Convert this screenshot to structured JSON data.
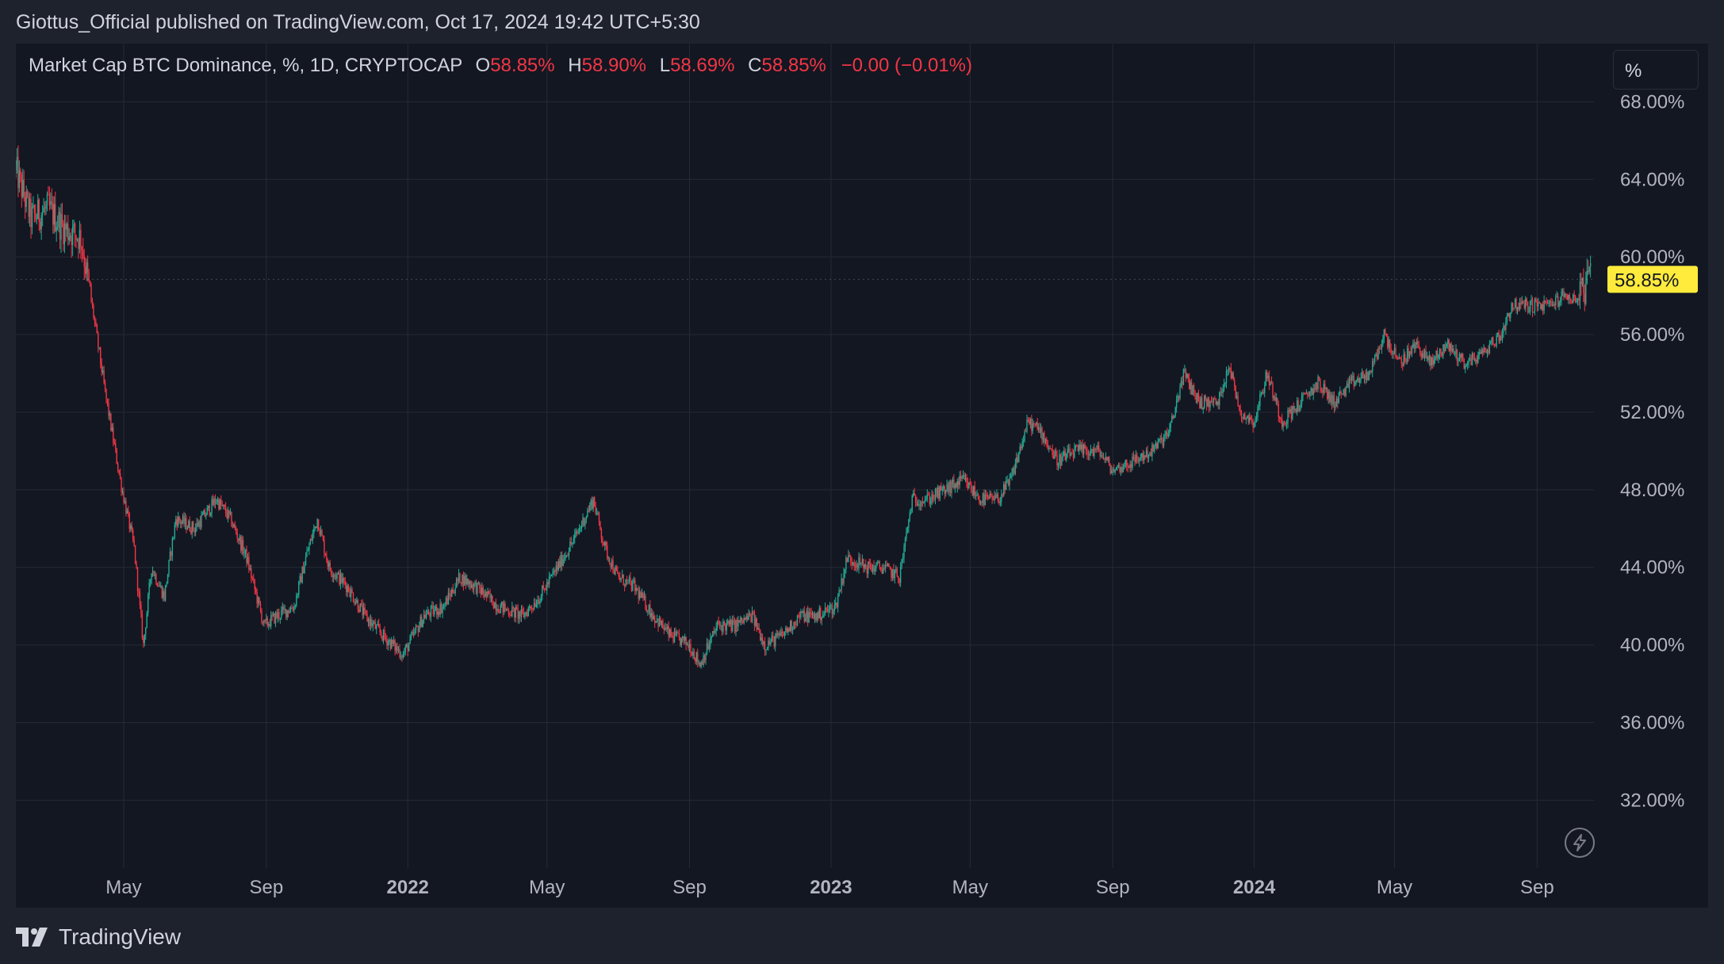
{
  "header": {
    "published_line": "Giottus_Official published on TradingView.com, Oct 17, 2024 19:42 UTC+5:30"
  },
  "legend": {
    "symbol": "Market Cap BTC Dominance, %, 1D, CRYPTOCAP",
    "o_label": "O",
    "o_value": "58.85%",
    "h_label": "H",
    "h_value": "58.90%",
    "l_label": "L",
    "l_value": "58.69%",
    "c_label": "C",
    "c_value": "58.85%",
    "change": "−0.00 (−0.01%)"
  },
  "scale_button": {
    "label": "%"
  },
  "footer": {
    "brand": "TradingView"
  },
  "colors": {
    "up": "#22ab94",
    "down": "#f23645",
    "background": "#131722",
    "frame": "#1e222d",
    "grid": "#262a35",
    "axis_text": "#b2b5be",
    "price_label_bg": "#ffeb3b"
  },
  "icons": {
    "scale_icon": "lightning-bolt-icon",
    "brand_icon": "tradingview-logo-icon"
  },
  "chart_data": {
    "type": "candlestick",
    "title": "Market Cap BTC Dominance, %, 1D, CRYPTOCAP",
    "ylim": [
      28.5,
      71
    ],
    "y_ticks": [
      "68.00%",
      "64.00%",
      "60.00%",
      "56.00%",
      "52.00%",
      "48.00%",
      "44.00%",
      "40.00%",
      "36.00%",
      "32.00%"
    ],
    "y_tick_values": [
      68,
      64,
      60,
      56,
      52,
      48,
      44,
      40,
      36,
      32
    ],
    "x_ticks": [
      "May",
      "Sep",
      "2022",
      "May",
      "Sep",
      "2023",
      "May",
      "Sep",
      "2024",
      "May",
      "Sep"
    ],
    "x_tick_dates": [
      "2021-05-01",
      "2021-09-01",
      "2022-01-01",
      "2022-05-01",
      "2022-09-01",
      "2023-01-01",
      "2023-05-01",
      "2023-09-01",
      "2024-01-01",
      "2024-05-01",
      "2024-09-01"
    ],
    "x_tick_bold": [
      false,
      false,
      true,
      false,
      false,
      true,
      false,
      false,
      true,
      false,
      false
    ],
    "x_range": [
      "2021-01-28",
      "2024-10-20"
    ],
    "last_price": 58.85,
    "last_price_label": "58.85%",
    "grid": true,
    "series": [
      {
        "date": "2021-01-28",
        "close": 64.5
      },
      {
        "date": "2021-02-10",
        "close": 62.0
      },
      {
        "date": "2021-02-25",
        "close": 62.5
      },
      {
        "date": "2021-03-10",
        "close": 61.5
      },
      {
        "date": "2021-03-25",
        "close": 61.0
      },
      {
        "date": "2021-04-05",
        "close": 57.0
      },
      {
        "date": "2021-04-15",
        "close": 53.0
      },
      {
        "date": "2021-04-28",
        "close": 48.5
      },
      {
        "date": "2021-05-10",
        "close": 45.0
      },
      {
        "date": "2021-05-18",
        "close": 40.0
      },
      {
        "date": "2021-05-25",
        "close": 44.0
      },
      {
        "date": "2021-06-05",
        "close": 42.5
      },
      {
        "date": "2021-06-15",
        "close": 46.5
      },
      {
        "date": "2021-07-01",
        "close": 46.0
      },
      {
        "date": "2021-07-20",
        "close": 47.5
      },
      {
        "date": "2021-08-01",
        "close": 46.5
      },
      {
        "date": "2021-08-15",
        "close": 44.5
      },
      {
        "date": "2021-08-30",
        "close": 41.0
      },
      {
        "date": "2021-09-10",
        "close": 41.5
      },
      {
        "date": "2021-09-25",
        "close": 42.0
      },
      {
        "date": "2021-10-05",
        "close": 44.5
      },
      {
        "date": "2021-10-15",
        "close": 46.5
      },
      {
        "date": "2021-10-25",
        "close": 44.0
      },
      {
        "date": "2021-11-10",
        "close": 43.0
      },
      {
        "date": "2021-11-25",
        "close": 41.5
      },
      {
        "date": "2021-12-10",
        "close": 40.5
      },
      {
        "date": "2021-12-28",
        "close": 39.5
      },
      {
        "date": "2022-01-15",
        "close": 41.5
      },
      {
        "date": "2022-02-01",
        "close": 42.0
      },
      {
        "date": "2022-02-15",
        "close": 43.5
      },
      {
        "date": "2022-03-01",
        "close": 43.0
      },
      {
        "date": "2022-03-20",
        "close": 42.0
      },
      {
        "date": "2022-04-10",
        "close": 41.5
      },
      {
        "date": "2022-04-25",
        "close": 42.5
      },
      {
        "date": "2022-05-10",
        "close": 44.0
      },
      {
        "date": "2022-05-25",
        "close": 45.5
      },
      {
        "date": "2022-06-10",
        "close": 47.5
      },
      {
        "date": "2022-06-20",
        "close": 45.0
      },
      {
        "date": "2022-07-01",
        "close": 43.5
      },
      {
        "date": "2022-07-15",
        "close": 43.0
      },
      {
        "date": "2022-08-01",
        "close": 41.5
      },
      {
        "date": "2022-08-15",
        "close": 40.5
      },
      {
        "date": "2022-09-01",
        "close": 40.0
      },
      {
        "date": "2022-09-10",
        "close": 39.0
      },
      {
        "date": "2022-09-25",
        "close": 41.0
      },
      {
        "date": "2022-10-10",
        "close": 41.0
      },
      {
        "date": "2022-10-25",
        "close": 41.5
      },
      {
        "date": "2022-11-05",
        "close": 40.0
      },
      {
        "date": "2022-11-20",
        "close": 40.5
      },
      {
        "date": "2022-12-05",
        "close": 41.5
      },
      {
        "date": "2022-12-20",
        "close": 41.5
      },
      {
        "date": "2023-01-05",
        "close": 42.0
      },
      {
        "date": "2023-01-15",
        "close": 44.5
      },
      {
        "date": "2023-02-01",
        "close": 44.0
      },
      {
        "date": "2023-02-15",
        "close": 44.0
      },
      {
        "date": "2023-03-01",
        "close": 43.5
      },
      {
        "date": "2023-03-12",
        "close": 47.5
      },
      {
        "date": "2023-03-25",
        "close": 47.5
      },
      {
        "date": "2023-04-10",
        "close": 48.0
      },
      {
        "date": "2023-04-25",
        "close": 48.5
      },
      {
        "date": "2023-05-10",
        "close": 47.5
      },
      {
        "date": "2023-05-25",
        "close": 47.5
      },
      {
        "date": "2023-06-05",
        "close": 48.5
      },
      {
        "date": "2023-06-20",
        "close": 51.5
      },
      {
        "date": "2023-07-01",
        "close": 51.0
      },
      {
        "date": "2023-07-15",
        "close": 49.5
      },
      {
        "date": "2023-08-01",
        "close": 50.0
      },
      {
        "date": "2023-08-20",
        "close": 50.0
      },
      {
        "date": "2023-09-01",
        "close": 49.0
      },
      {
        "date": "2023-09-20",
        "close": 49.5
      },
      {
        "date": "2023-10-05",
        "close": 50.0
      },
      {
        "date": "2023-10-20",
        "close": 51.0
      },
      {
        "date": "2023-11-01",
        "close": 54.0
      },
      {
        "date": "2023-11-15",
        "close": 52.5
      },
      {
        "date": "2023-12-01",
        "close": 52.5
      },
      {
        "date": "2023-12-10",
        "close": 54.5
      },
      {
        "date": "2023-12-20",
        "close": 52.0
      },
      {
        "date": "2024-01-01",
        "close": 51.5
      },
      {
        "date": "2024-01-12",
        "close": 54.0
      },
      {
        "date": "2024-01-25",
        "close": 51.5
      },
      {
        "date": "2024-02-10",
        "close": 52.5
      },
      {
        "date": "2024-02-25",
        "close": 53.5
      },
      {
        "date": "2024-03-10",
        "close": 52.5
      },
      {
        "date": "2024-03-25",
        "close": 53.5
      },
      {
        "date": "2024-04-10",
        "close": 54.0
      },
      {
        "date": "2024-04-22",
        "close": 56.0
      },
      {
        "date": "2024-05-05",
        "close": 54.5
      },
      {
        "date": "2024-05-20",
        "close": 55.5
      },
      {
        "date": "2024-06-01",
        "close": 54.5
      },
      {
        "date": "2024-06-15",
        "close": 55.5
      },
      {
        "date": "2024-07-01",
        "close": 54.5
      },
      {
        "date": "2024-07-15",
        "close": 55.0
      },
      {
        "date": "2024-08-01",
        "close": 56.0
      },
      {
        "date": "2024-08-10",
        "close": 57.5
      },
      {
        "date": "2024-08-25",
        "close": 57.5
      },
      {
        "date": "2024-09-10",
        "close": 57.5
      },
      {
        "date": "2024-09-25",
        "close": 58.0
      },
      {
        "date": "2024-10-05",
        "close": 57.8
      },
      {
        "date": "2024-10-17",
        "close": 58.85
      }
    ]
  }
}
